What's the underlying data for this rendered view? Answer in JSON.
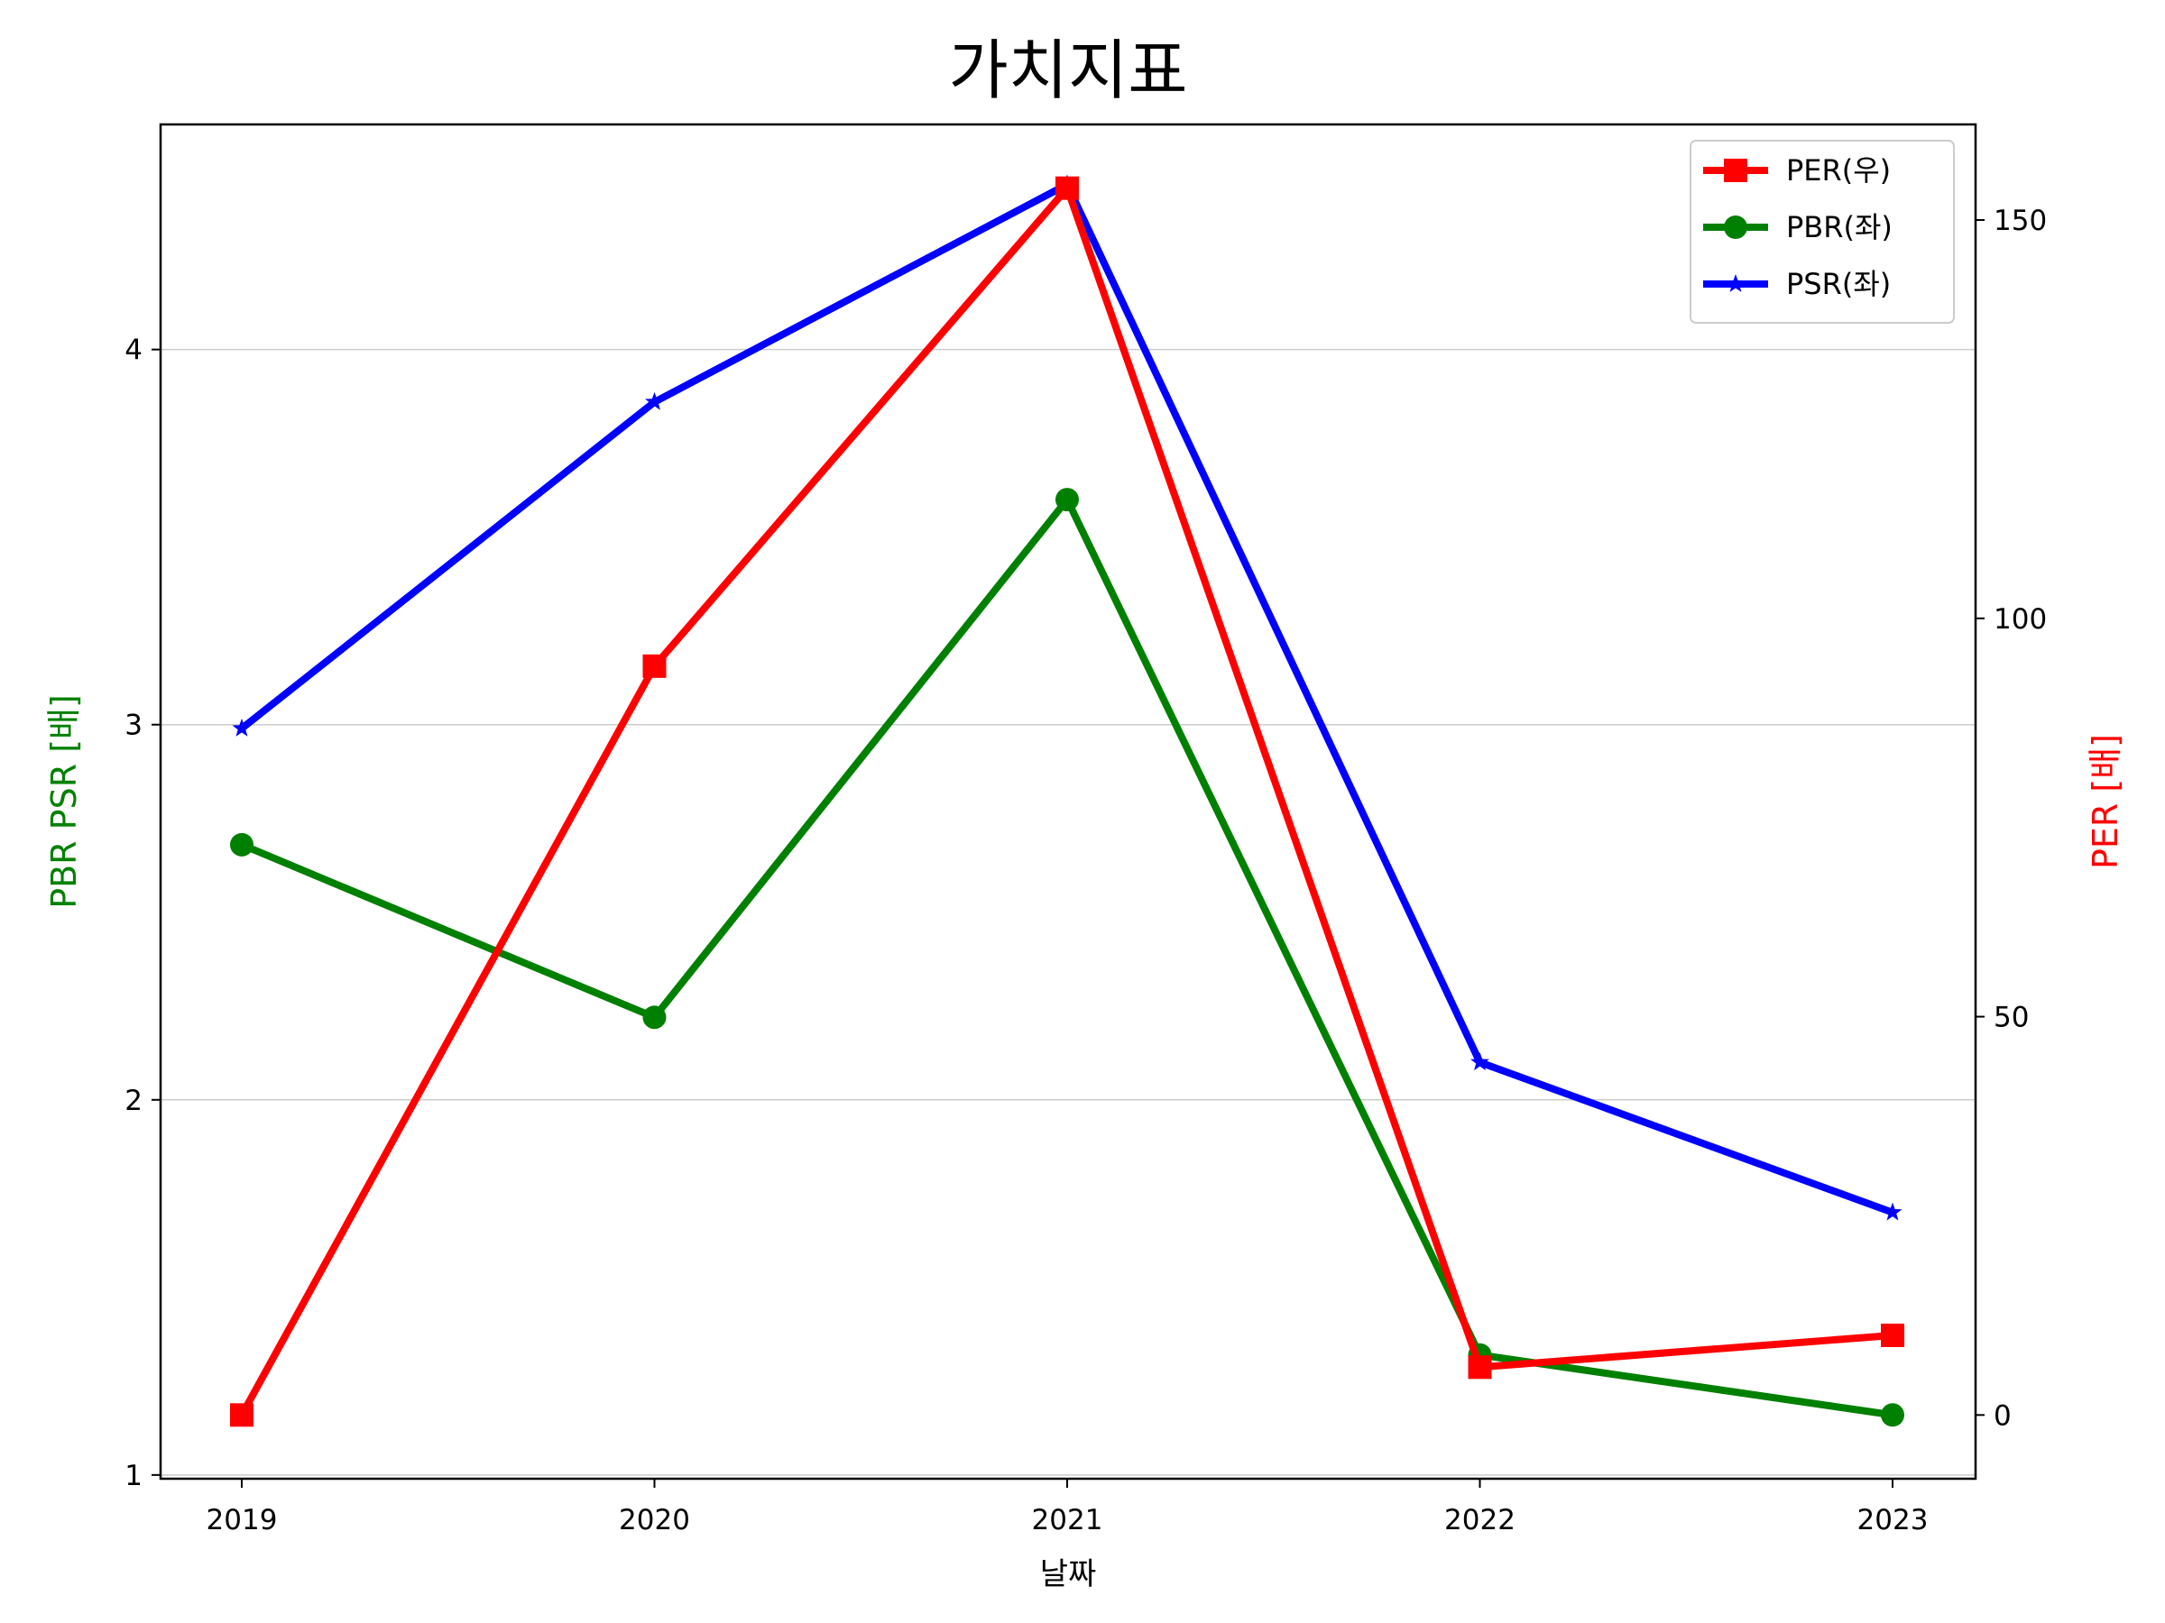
{
  "chart_data": {
    "type": "line",
    "title": "가치지표",
    "xlabel": "날짜",
    "ylabel_left": "PBR PSR [배]",
    "ylabel_right": "PER [배]",
    "categories": [
      "2019",
      "2020",
      "2021",
      "2022",
      "2023"
    ],
    "y_left": {
      "lim": [
        0.99,
        4.6
      ],
      "ticks": [
        "1",
        "2",
        "3",
        "4"
      ]
    },
    "y_right": {
      "lim": [
        -8,
        162
      ],
      "ticks": [
        "0",
        "50",
        "100",
        "150"
      ]
    },
    "grid": "horizontal (left axis)",
    "legend_position": "top-right",
    "series": [
      {
        "name": "PER(우)",
        "axis": "right",
        "color": "#ff0000",
        "marker": "square",
        "values": [
          0,
          94,
          154,
          6,
          10
        ]
      },
      {
        "name": "PBR(좌)",
        "axis": "left",
        "color": "#008000",
        "marker": "circle",
        "values": [
          2.68,
          2.22,
          3.6,
          1.32,
          1.16
        ]
      },
      {
        "name": "PSR(좌)",
        "axis": "left",
        "color": "#0000ff",
        "marker": "star",
        "values": [
          2.99,
          3.86,
          4.44,
          2.1,
          1.7
        ]
      }
    ]
  }
}
